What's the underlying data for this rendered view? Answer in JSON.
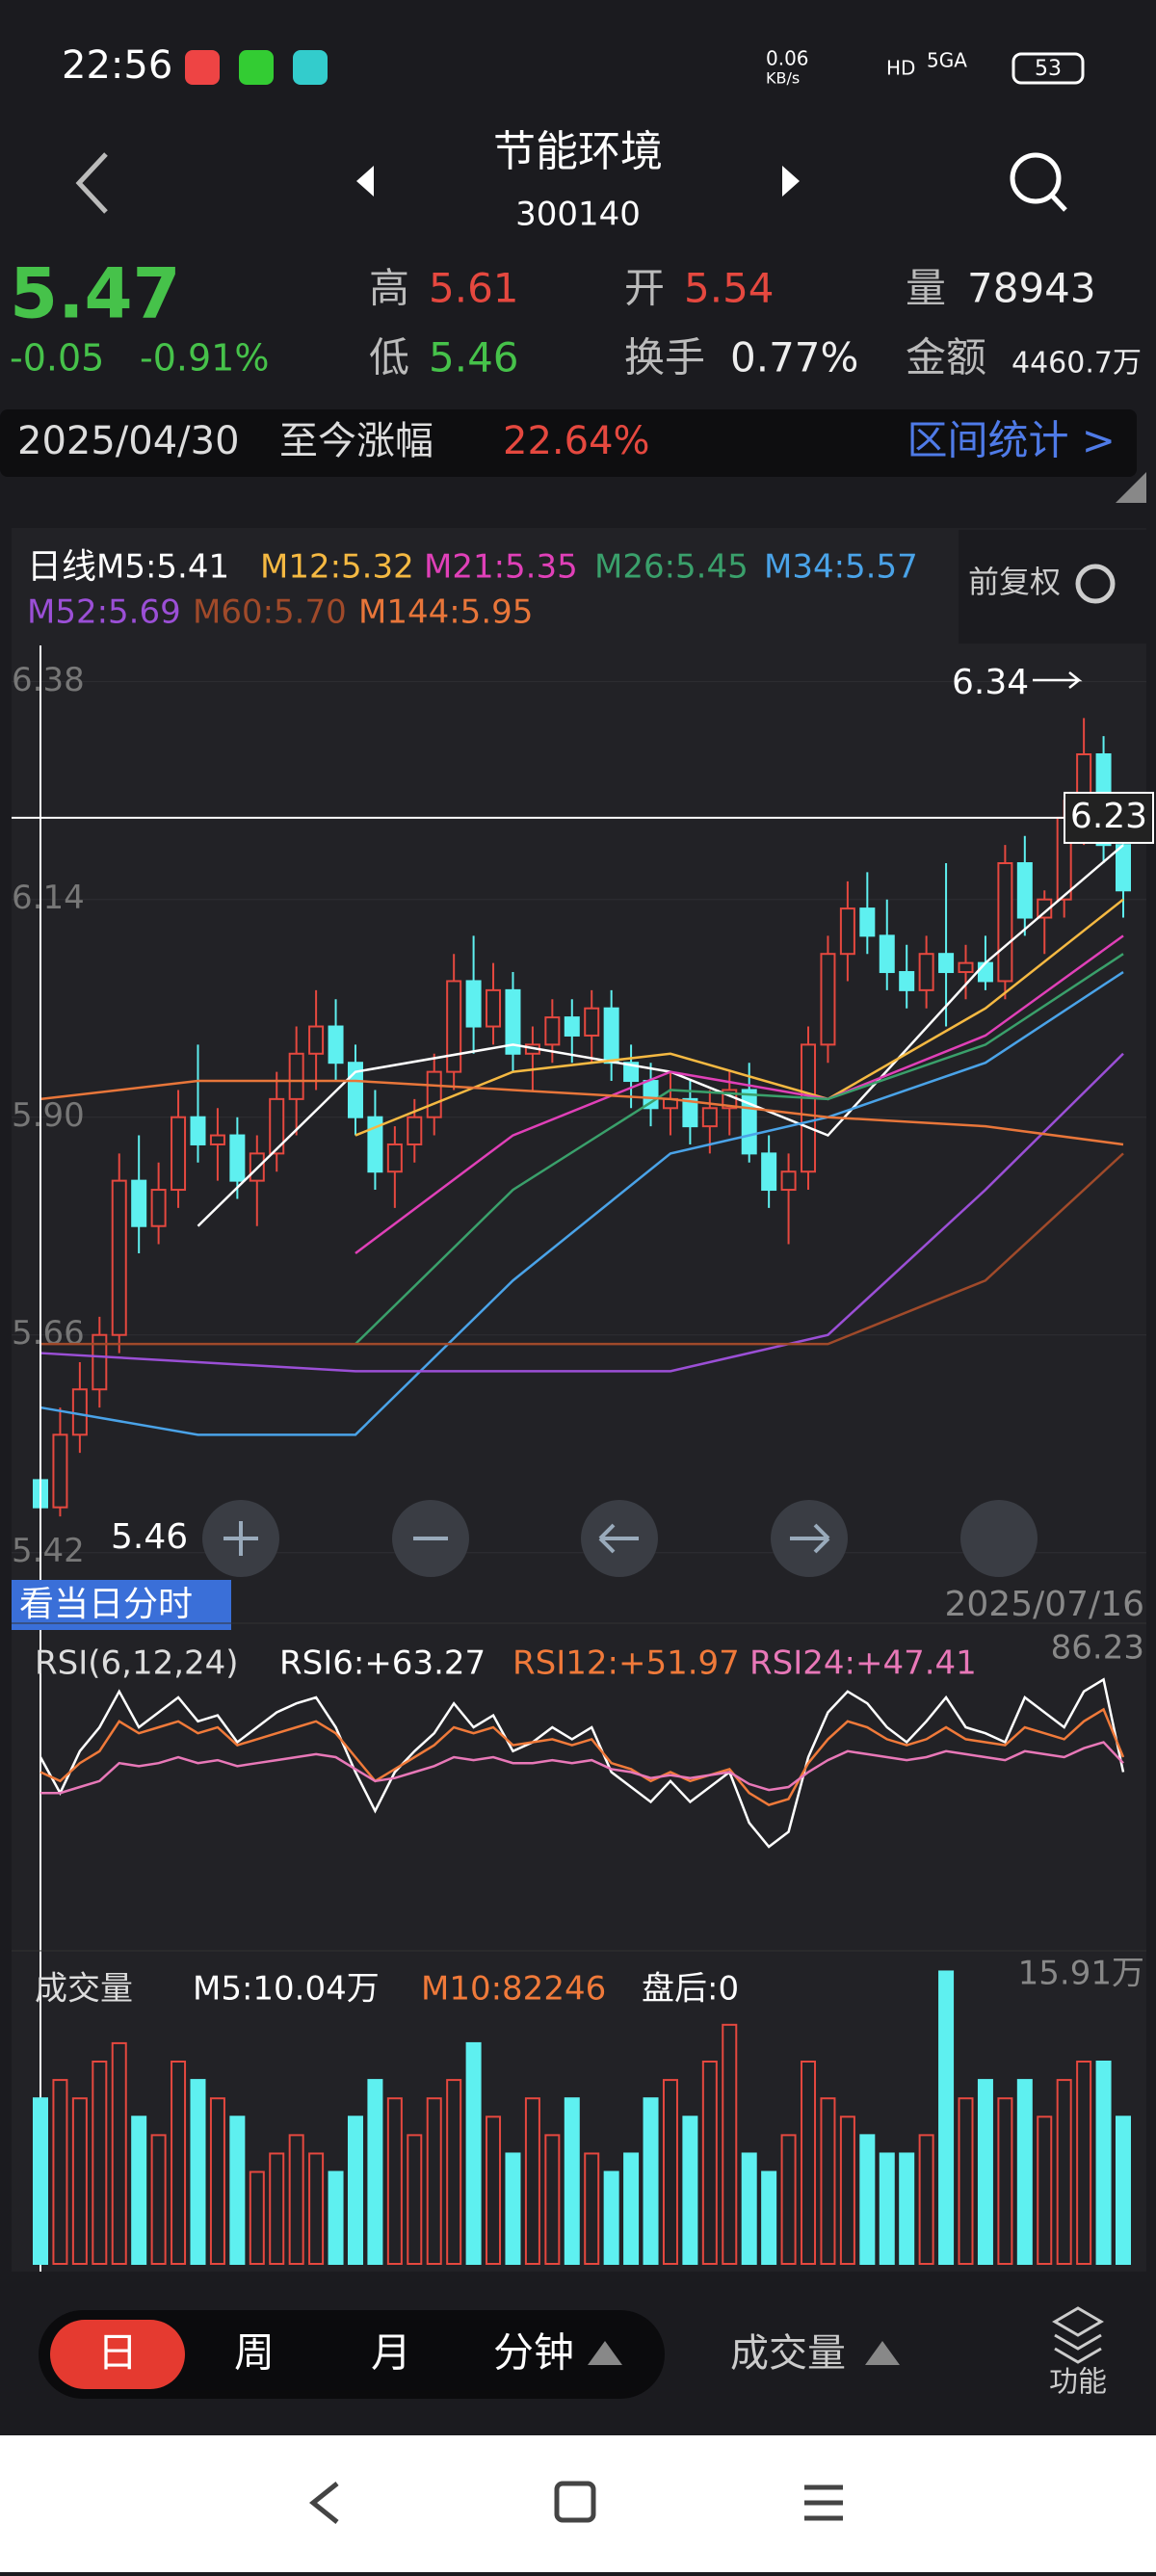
{
  "status": {
    "time": "22:56",
    "net": "0.06",
    "net_unit": "KB/s",
    "hd": "HD",
    "signal": "5GA",
    "battery": "53"
  },
  "header": {
    "title": "节能环境",
    "code": "300140"
  },
  "quote": {
    "price": "5.47",
    "change": "-0.05",
    "change_pct": "-0.91%",
    "high_label": "高",
    "high": "5.61",
    "low_label": "低",
    "low": "5.46",
    "open_label": "开",
    "open": "5.54",
    "turnover_label": "换手",
    "turnover": "0.77%",
    "volume_label": "量",
    "volume": "78943",
    "amount_label": "金额",
    "amount": "4460.7万"
  },
  "range_bar": {
    "date": "2025/04/30",
    "label": "至今涨幅",
    "value": "22.64%",
    "link": "区间统计 >"
  },
  "legend": {
    "period": "日线",
    "restore": "前复权",
    "items": [
      "M5:5.41",
      "M12:5.32",
      "M21:5.35",
      "M26:5.45",
      "M34:5.57",
      "M52:5.69",
      "M60:5.70",
      "M144:5.95"
    ]
  },
  "kline": {
    "ylim": [
      5.39,
      6.42
    ],
    "yticks": [
      6.38,
      6.14,
      {
        "value": 5.9,
        "label": "5.90"
      },
      5.66,
      5.42
    ],
    "high_note": "6.34",
    "cross_price": "6.23",
    "cross_low": "5.46",
    "cross_y": 6.23,
    "up_color": "#e5483f",
    "down_color": "#5ef0f0",
    "candles": [
      [
        5.5,
        5.52,
        5.44,
        5.47
      ],
      [
        5.47,
        5.58,
        5.46,
        5.55
      ],
      [
        5.55,
        5.63,
        5.53,
        5.6
      ],
      [
        5.6,
        5.68,
        5.58,
        5.66
      ],
      [
        5.66,
        5.86,
        5.64,
        5.83
      ],
      [
        5.83,
        5.88,
        5.75,
        5.78
      ],
      [
        5.78,
        5.85,
        5.76,
        5.82
      ],
      [
        5.82,
        5.93,
        5.8,
        5.9
      ],
      [
        5.9,
        5.98,
        5.85,
        5.87
      ],
      [
        5.87,
        5.91,
        5.83,
        5.88
      ],
      [
        5.88,
        5.9,
        5.81,
        5.83
      ],
      [
        5.83,
        5.88,
        5.78,
        5.86
      ],
      [
        5.86,
        5.95,
        5.84,
        5.92
      ],
      [
        5.92,
        6.0,
        5.88,
        5.97
      ],
      [
        5.97,
        6.04,
        5.93,
        6.0
      ],
      [
        6.0,
        6.03,
        5.94,
        5.96
      ],
      [
        5.96,
        5.98,
        5.88,
        5.9
      ],
      [
        5.9,
        5.93,
        5.82,
        5.84
      ],
      [
        5.84,
        5.89,
        5.8,
        5.87
      ],
      [
        5.87,
        5.92,
        5.85,
        5.9
      ],
      [
        5.9,
        5.97,
        5.88,
        5.95
      ],
      [
        5.95,
        6.08,
        5.93,
        6.05
      ],
      [
        6.05,
        6.1,
        5.97,
        6.0
      ],
      [
        6.0,
        6.07,
        5.98,
        6.04
      ],
      [
        6.04,
        6.06,
        5.95,
        5.97
      ],
      [
        5.97,
        6.0,
        5.93,
        5.98
      ],
      [
        5.98,
        6.03,
        5.96,
        6.01
      ],
      [
        6.01,
        6.03,
        5.96,
        5.99
      ],
      [
        5.99,
        6.04,
        5.96,
        6.02
      ],
      [
        6.02,
        6.04,
        5.94,
        5.96
      ],
      [
        5.96,
        5.98,
        5.91,
        5.94
      ],
      [
        5.94,
        5.96,
        5.89,
        5.91
      ],
      [
        5.91,
        5.95,
        5.88,
        5.92
      ],
      [
        5.92,
        5.94,
        5.87,
        5.89
      ],
      [
        5.89,
        5.93,
        5.86,
        5.91
      ],
      [
        5.91,
        5.95,
        5.88,
        5.93
      ],
      [
        5.93,
        5.96,
        5.85,
        5.86
      ],
      [
        5.86,
        5.88,
        5.8,
        5.82
      ],
      [
        5.82,
        5.86,
        5.76,
        5.84
      ],
      [
        5.84,
        6.0,
        5.82,
        5.98
      ],
      [
        5.98,
        6.1,
        5.96,
        6.08
      ],
      [
        6.08,
        6.16,
        6.05,
        6.13
      ],
      [
        6.13,
        6.17,
        6.08,
        6.1
      ],
      [
        6.1,
        6.14,
        6.04,
        6.06
      ],
      [
        6.06,
        6.09,
        6.02,
        6.04
      ],
      [
        6.04,
        6.1,
        6.02,
        6.08
      ],
      [
        6.08,
        6.18,
        6.0,
        6.06
      ],
      [
        6.06,
        6.09,
        6.03,
        6.07
      ],
      [
        6.07,
        6.1,
        6.04,
        6.05
      ],
      [
        6.05,
        6.2,
        6.03,
        6.18
      ],
      [
        6.18,
        6.21,
        6.1,
        6.12
      ],
      [
        6.12,
        6.15,
        6.08,
        6.14
      ],
      [
        6.14,
        6.25,
        6.12,
        6.23
      ],
      [
        6.23,
        6.34,
        6.2,
        6.3
      ],
      [
        6.3,
        6.32,
        6.18,
        6.2
      ],
      [
        6.2,
        6.24,
        6.12,
        6.15
      ]
    ],
    "ma_x": [
      0,
      8,
      16,
      24,
      32,
      40,
      48,
      55
    ],
    "ma": [
      {
        "color": "#ffffff",
        "values": [
          null,
          5.78,
          5.95,
          5.98,
          5.95,
          5.88,
          6.07,
          6.2
        ]
      },
      {
        "color": "#f5b942",
        "values": [
          null,
          null,
          5.88,
          5.95,
          5.97,
          5.92,
          6.02,
          6.14
        ]
      },
      {
        "color": "#e040b8",
        "values": [
          null,
          null,
          5.75,
          5.88,
          5.95,
          5.92,
          5.99,
          6.1
        ]
      },
      {
        "color": "#3aa06b",
        "values": [
          null,
          null,
          5.65,
          5.82,
          5.93,
          5.92,
          5.98,
          6.08
        ]
      },
      {
        "color": "#4aa3e8",
        "values": [
          5.58,
          5.55,
          5.55,
          5.72,
          5.86,
          5.9,
          5.96,
          6.06
        ]
      },
      {
        "color": "#9b4fd6",
        "values": [
          5.64,
          5.63,
          5.62,
          5.62,
          5.62,
          5.66,
          5.82,
          5.97
        ]
      },
      {
        "color": "#a04a2a",
        "values": [
          5.65,
          5.65,
          5.65,
          5.65,
          5.65,
          5.65,
          5.72,
          5.86
        ]
      },
      {
        "color": "#e8763a",
        "values": [
          5.92,
          5.94,
          5.94,
          5.93,
          5.92,
          5.9,
          5.89,
          5.87
        ]
      }
    ]
  },
  "tools": {
    "day_time": "看当日分时",
    "date": "2025/07/16"
  },
  "rsi": {
    "label": "RSI(6,12,24)",
    "ylim": [
      0,
      100
    ],
    "top": "86.23",
    "series": [
      {
        "name": "RSI6:+63.27",
        "color": "#ffffff",
        "values": [
          60,
          48,
          62,
          70,
          82,
          70,
          75,
          80,
          72,
          74,
          65,
          70,
          75,
          78,
          80,
          70,
          55,
          42,
          55,
          62,
          68,
          78,
          70,
          74,
          62,
          65,
          70,
          66,
          70,
          55,
          50,
          45,
          52,
          45,
          50,
          55,
          38,
          30,
          35,
          60,
          75,
          82,
          78,
          70,
          65,
          72,
          80,
          70,
          68,
          65,
          80,
          75,
          70,
          82,
          86,
          55
        ]
      },
      {
        "name": "RSI12:+51.97",
        "color": "#f07a3a",
        "values": [
          55,
          52,
          58,
          62,
          72,
          68,
          70,
          72,
          68,
          70,
          64,
          66,
          68,
          70,
          72,
          68,
          60,
          52,
          56,
          60,
          64,
          70,
          68,
          70,
          64,
          65,
          66,
          64,
          66,
          58,
          56,
          52,
          55,
          52,
          54,
          56,
          48,
          44,
          46,
          58,
          66,
          72,
          70,
          66,
          64,
          66,
          70,
          66,
          65,
          64,
          70,
          68,
          66,
          72,
          76,
          60
        ]
      },
      {
        "name": "RSI24:+47.41",
        "color": "#e878b8",
        "values": [
          48,
          48,
          50,
          52,
          58,
          57,
          58,
          60,
          58,
          59,
          57,
          58,
          59,
          60,
          61,
          60,
          56,
          52,
          53,
          55,
          57,
          60,
          59,
          60,
          58,
          58,
          59,
          58,
          59,
          56,
          55,
          53,
          54,
          53,
          54,
          55,
          51,
          49,
          50,
          55,
          59,
          62,
          61,
          60,
          59,
          60,
          62,
          61,
          60,
          59,
          62,
          61,
          60,
          63,
          65,
          58
        ]
      }
    ]
  },
  "volume": {
    "label": "成交量",
    "m5": "M5:10.04万",
    "m10": "M10:82246",
    "after": "盘后:0",
    "top": "15.91万",
    "ylim": [
      0,
      16.5
    ],
    "values": [
      9,
      10,
      9,
      11,
      12,
      8,
      7,
      11,
      10,
      9,
      8,
      5,
      6,
      7,
      6,
      5,
      8,
      10,
      9,
      7,
      9,
      10,
      12,
      8,
      6,
      9,
      7,
      9,
      6,
      5,
      6,
      9,
      10,
      8,
      11,
      13,
      6,
      5,
      7,
      11,
      9,
      8,
      7,
      6,
      6,
      7,
      15.9,
      9,
      10,
      9,
      10,
      8,
      10,
      11,
      11,
      8
    ]
  },
  "tabs": {
    "items": [
      "日",
      "周",
      "月",
      "分钟"
    ],
    "indicator": "成交量",
    "func": "功能"
  }
}
